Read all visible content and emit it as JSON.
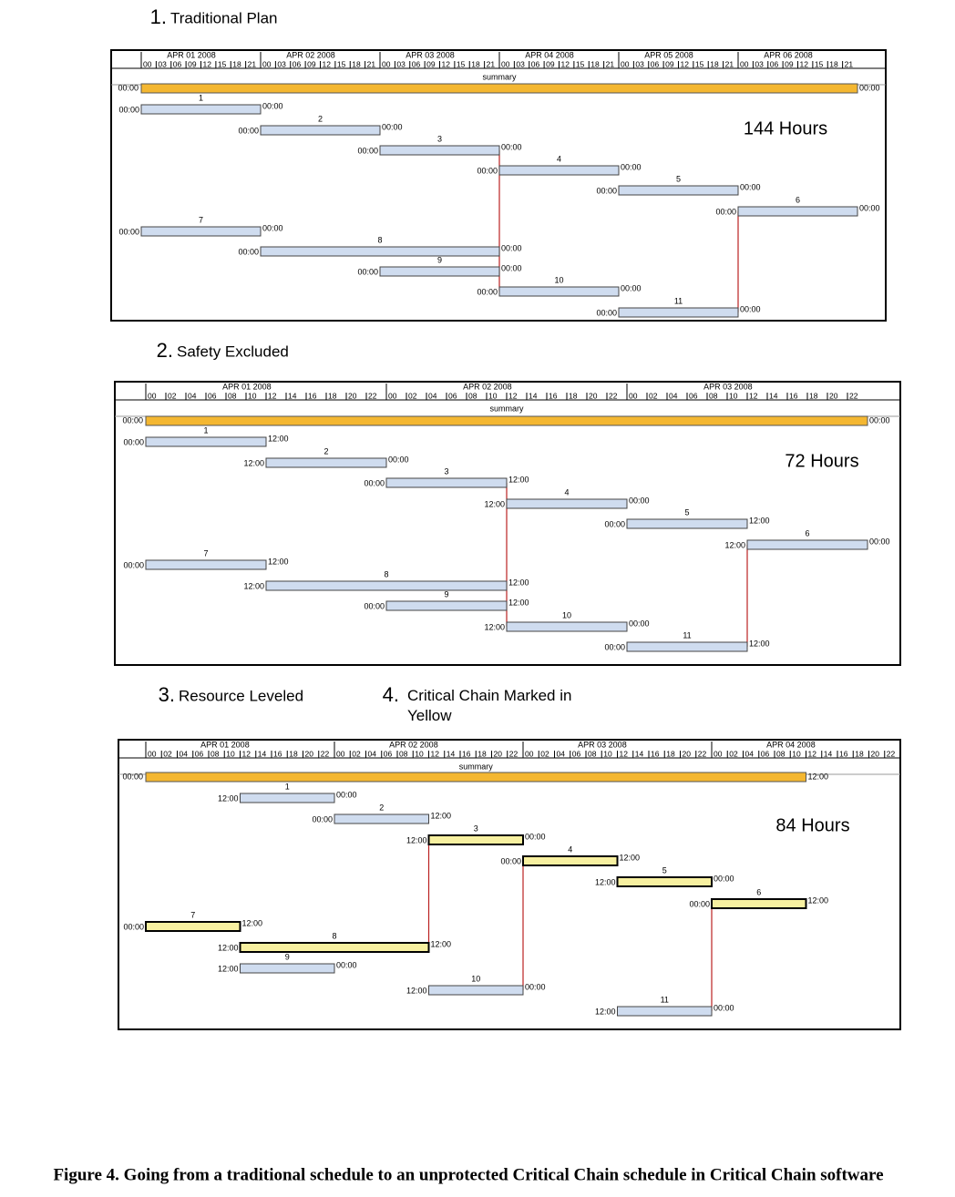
{
  "figure": {
    "panels": [
      {
        "number": "1.",
        "title": "Traditional Plan",
        "dates": [
          "APR 01 2008",
          "APR 02 2008",
          "APR 03 2008",
          "APR 04 2008",
          "APR 05 2008",
          "APR 06 2008"
        ],
        "hours": [
          "00",
          "03",
          "06",
          "09",
          "12",
          "15",
          "18",
          "21"
        ],
        "summary_label": "summary",
        "summary_times": [
          "00:00",
          "00:00"
        ],
        "total": "144 Hours",
        "tasks": [
          {
            "id": "1",
            "start": "00:00",
            "end": "00:00"
          },
          {
            "id": "2",
            "start": "00:00",
            "end": "00:00"
          },
          {
            "id": "3",
            "start": "00:00",
            "end": "00:00"
          },
          {
            "id": "4",
            "start": "00:00",
            "end": "00:00"
          },
          {
            "id": "5",
            "start": "00:00",
            "end": "00:00"
          },
          {
            "id": "6",
            "start": "00:00",
            "end": "00:00"
          },
          {
            "id": "7",
            "start": "00:00",
            "end": "00:00"
          },
          {
            "id": "8",
            "start": "00:00",
            "end": "00:00"
          },
          {
            "id": "9",
            "start": "00:00",
            "end": "00:00"
          },
          {
            "id": "10",
            "start": "00:00",
            "end": "00:00"
          },
          {
            "id": "11",
            "start": "00:00",
            "end": "00:00"
          }
        ]
      },
      {
        "number": "2.",
        "title": "Safety Excluded",
        "dates": [
          "APR 01 2008",
          "APR 02 2008",
          "APR 03 2008"
        ],
        "hours": [
          "00",
          "02",
          "04",
          "06",
          "08",
          "10",
          "12",
          "14",
          "16",
          "18",
          "20",
          "22"
        ],
        "summary_label": "summary",
        "summary_times": [
          "00:00",
          "00:00"
        ],
        "total": "72 Hours",
        "tasks": [
          {
            "id": "1",
            "start": "00:00",
            "end": "12:00"
          },
          {
            "id": "2",
            "start": "12:00",
            "end": "00:00"
          },
          {
            "id": "3",
            "start": "00:00",
            "end": "12:00"
          },
          {
            "id": "4",
            "start": "12:00",
            "end": "00:00"
          },
          {
            "id": "5",
            "start": "00:00",
            "end": "12:00"
          },
          {
            "id": "6",
            "start": "12:00",
            "end": "00:00"
          },
          {
            "id": "7",
            "start": "00:00",
            "end": "12:00"
          },
          {
            "id": "8",
            "start": "12:00",
            "end": "12:00"
          },
          {
            "id": "9",
            "start": "00:00",
            "end": "12:00"
          },
          {
            "id": "10",
            "start": "12:00",
            "end": "00:00"
          },
          {
            "id": "11",
            "start": "00:00",
            "end": "12:00"
          }
        ]
      },
      {
        "number": "3.",
        "title": "Resource Leveled",
        "note_number": "4.",
        "note": "Critical Chain Marked in Yellow",
        "dates": [
          "APR 01 2008",
          "APR 02 2008",
          "APR 03 2008",
          "APR 04 2008"
        ],
        "hours": [
          "00",
          "02",
          "04",
          "06",
          "08",
          "10",
          "12",
          "14",
          "16",
          "18",
          "20",
          "22"
        ],
        "summary_label": "summary",
        "summary_times": [
          "00:00",
          "12:00"
        ],
        "total": "84 Hours",
        "tasks": [
          {
            "id": "1",
            "start": "12:00",
            "end": "00:00"
          },
          {
            "id": "2",
            "start": "00:00",
            "end": "12:00"
          },
          {
            "id": "3",
            "start": "12:00",
            "end": "00:00"
          },
          {
            "id": "4",
            "start": "00:00",
            "end": "12:00"
          },
          {
            "id": "5",
            "start": "12:00",
            "end": "00:00"
          },
          {
            "id": "6",
            "start": "00:00",
            "end": "12:00"
          },
          {
            "id": "7",
            "start": "00:00",
            "end": "12:00"
          },
          {
            "id": "8",
            "start": "12:00",
            "end": "12:00"
          },
          {
            "id": "9",
            "start": "12:00",
            "end": "00:00"
          },
          {
            "id": "10",
            "start": "12:00",
            "end": "00:00"
          },
          {
            "id": "11",
            "start": "12:00",
            "end": "00:00"
          }
        ]
      }
    ],
    "caption": "Figure 4. Going from a traditional schedule to an unprotected Critical Chain schedule in Critical Chain software"
  }
}
